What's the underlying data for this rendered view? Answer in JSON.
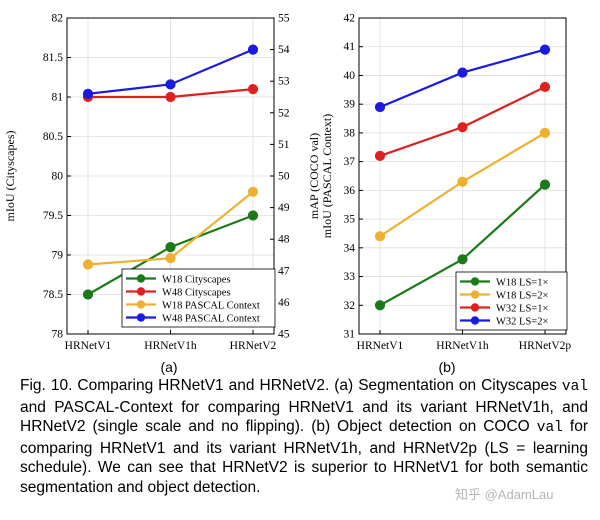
{
  "chart_data": [
    {
      "type": "line",
      "categories": [
        "HRNetV1",
        "HRNetV1h",
        "HRNetV2"
      ],
      "ylabel": "mIoU (Cityscapes)",
      "ylabel_right": "mIoU (PASCAL Context)",
      "ylim": [
        78,
        82
      ],
      "ylim_right": [
        45,
        55
      ],
      "yticks": [
        "78",
        "78.5",
        "79",
        "79.5",
        "80",
        "80.5",
        "81",
        "81.5",
        "82"
      ],
      "yticks_right": [
        "45",
        "46",
        "47",
        "48",
        "49",
        "50",
        "51",
        "52",
        "53",
        "54",
        "55"
      ],
      "grid": true,
      "legend_position": "bottom-right",
      "panel_label": "(a)",
      "series": [
        {
          "name": "W18 Cityscapes",
          "axis": "left",
          "color": "#1a7a1a",
          "values": [
            78.5,
            79.1,
            79.5
          ]
        },
        {
          "name": "W48 Cityscapes",
          "axis": "left",
          "color": "#dd2020",
          "values": [
            81.0,
            81.0,
            81.1
          ]
        },
        {
          "name": "W18 PASCAL Context",
          "axis": "right",
          "color": "#eeb030",
          "values": [
            47.2,
            47.4,
            49.5
          ]
        },
        {
          "name": "W48 PASCAL Context",
          "axis": "right",
          "color": "#1a1ae0",
          "values": [
            52.6,
            52.9,
            54.0
          ]
        }
      ]
    },
    {
      "type": "line",
      "categories": [
        "HRNetV1",
        "HRNetV1h",
        "HRNetV2p"
      ],
      "ylabel": "mAP (COCO val)",
      "ylim": [
        31,
        42
      ],
      "yticks": [
        "31",
        "32",
        "33",
        "34",
        "35",
        "36",
        "37",
        "38",
        "39",
        "40",
        "41",
        "42"
      ],
      "grid": true,
      "legend_position": "bottom-right",
      "panel_label": "(b)",
      "series": [
        {
          "name": "W18 LS=1×",
          "color": "#1a7a1a",
          "values": [
            32.0,
            33.6,
            36.2
          ]
        },
        {
          "name": "W18 LS=2×",
          "color": "#eeb030",
          "values": [
            34.4,
            36.3,
            38.0
          ]
        },
        {
          "name": "W32 LS=1×",
          "color": "#dd2020",
          "values": [
            37.2,
            38.2,
            39.6
          ]
        },
        {
          "name": "W32 LS=2×",
          "color": "#1a1ae0",
          "values": [
            38.9,
            40.1,
            40.9
          ]
        }
      ]
    }
  ],
  "caption": {
    "t1": "Fig. 10. Comparing HRNetV1 and HRNetV2. (a) Segmentation on Cityscapes ",
    "m1": "val",
    "t2": " and PASCAL-Context for comparing HRNetV1 and its variant HRNetV1h, and HRNetV2 (single scale and no flipping). (b) Object detection on COCO ",
    "m2": "val",
    "t3": " for comparing HRNetV1 and its variant HRNetV1h, and HRNetV2p (LS = learning schedule). We can see that HRNetV2 is superior to HRNetV1 for both semantic segmentation and object detection."
  },
  "watermark": "知乎 @AdamLau"
}
